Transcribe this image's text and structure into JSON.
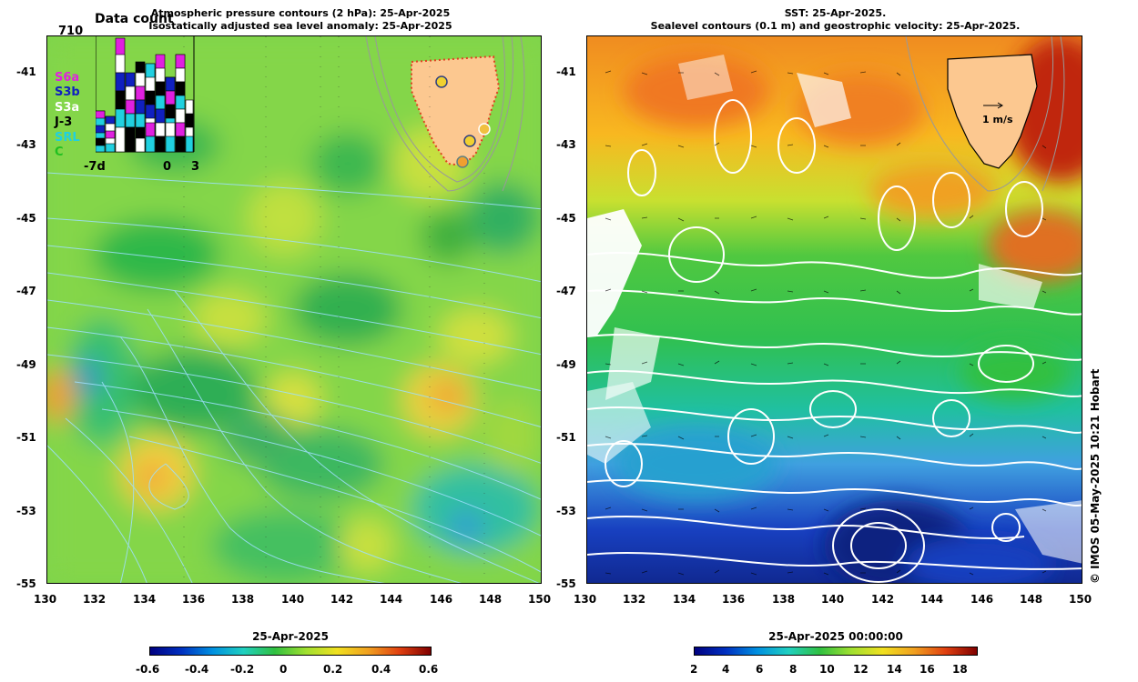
{
  "left_panel": {
    "title_line1": "Atmospheric pressure contours (2 hPa): 25-Apr-2025",
    "title_line2": "Isostatically adjusted sea level anomaly: 25-Apr-2025",
    "x_ticks": [
      "130",
      "132",
      "134",
      "136",
      "138",
      "140",
      "142",
      "144",
      "146",
      "148",
      "150"
    ],
    "y_ticks": [
      "-41",
      "-43",
      "-45",
      "-47",
      "-49",
      "-51",
      "-53",
      "-55"
    ],
    "colorbar_title": "25-Apr-2025",
    "colorbar_ticks": [
      "-0.6",
      "-0.4",
      "-0.2",
      "0",
      "0.2",
      "0.4",
      "0.6"
    ],
    "data_count": {
      "label": "Data count",
      "max": "710",
      "x_ticks": [
        "-7d",
        "0",
        "3"
      ],
      "satellites": [
        {
          "name": "S6a",
          "color": "#e020e0"
        },
        {
          "name": "S3b",
          "color": "#1020c0"
        },
        {
          "name": "S3a",
          "color": "#ffffff"
        },
        {
          "name": "J-3",
          "color": "#000000"
        },
        {
          "name": "SRL",
          "color": "#20d0e0"
        },
        {
          "name": "C",
          "color": "#20c020"
        }
      ]
    }
  },
  "right_panel": {
    "title_line1": "SST: 25-Apr-2025.",
    "title_line2": "Sealevel contours (0.1 m) and geostrophic velocity: 25-Apr-2025.",
    "x_ticks": [
      "130",
      "132",
      "134",
      "136",
      "138",
      "140",
      "142",
      "144",
      "146",
      "148",
      "150"
    ],
    "y_ticks": [
      "-41",
      "-43",
      "-45",
      "-47",
      "-49",
      "-51",
      "-53",
      "-55"
    ],
    "velocity_scale": "1 m/s",
    "colorbar_title": "25-Apr-2025 00:00:00",
    "colorbar_ticks": [
      "2",
      "4",
      "6",
      "8",
      "10",
      "12",
      "14",
      "16",
      "18"
    ]
  },
  "credit": "© IMOS 05-May-2025 10:21 Hobart",
  "colors": {
    "land": "#fcc890"
  }
}
